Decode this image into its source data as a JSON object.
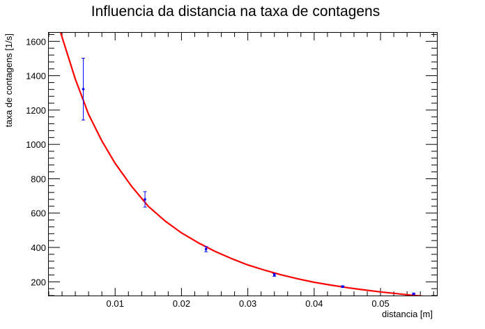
{
  "chart_data": {
    "type": "scatter",
    "title": "Influencia da distancia na taxa de contagens",
    "xlabel": "distancia [m]",
    "ylabel": "taxa de contagens [1/s]",
    "xlim": [
      0.0,
      0.0585
    ],
    "ylim": [
      120,
      1650
    ],
    "x_ticks": [
      0.01,
      0.02,
      0.03,
      0.04,
      0.05
    ],
    "x_tick_labels": [
      "0.01",
      "0.02",
      "0.03",
      "0.04",
      "0.05"
    ],
    "y_ticks": [
      200,
      400,
      600,
      800,
      1000,
      1200,
      1400,
      1600
    ],
    "y_tick_labels": [
      "200",
      "400",
      "600",
      "800",
      "1000",
      "1200",
      "1400",
      "1600"
    ],
    "grid": false,
    "series": [
      {
        "kind": "points-with-error-bars",
        "color": "#0000ff",
        "x": [
          0.0052,
          0.0145,
          0.0237,
          0.034,
          0.0443,
          0.055
        ],
        "y": [
          1322,
          680,
          390,
          240,
          172,
          130
        ],
        "y_err": [
          180,
          45,
          15,
          8,
          5,
          4
        ]
      },
      {
        "kind": "fit-curve",
        "color": "#ff0000",
        "x": [
          0.0018,
          0.004,
          0.006,
          0.008,
          0.01,
          0.0125,
          0.015,
          0.0175,
          0.02,
          0.0225,
          0.025,
          0.0275,
          0.03,
          0.0325,
          0.035,
          0.0375,
          0.04,
          0.0425,
          0.045,
          0.0475,
          0.05,
          0.0525,
          0.055,
          0.057
        ],
        "y": [
          1650,
          1380,
          1175,
          1020,
          890,
          755,
          640,
          555,
          485,
          428,
          378,
          336,
          298,
          268,
          241,
          218,
          197,
          181,
          166,
          153,
          141,
          131,
          121,
          114
        ]
      }
    ]
  }
}
